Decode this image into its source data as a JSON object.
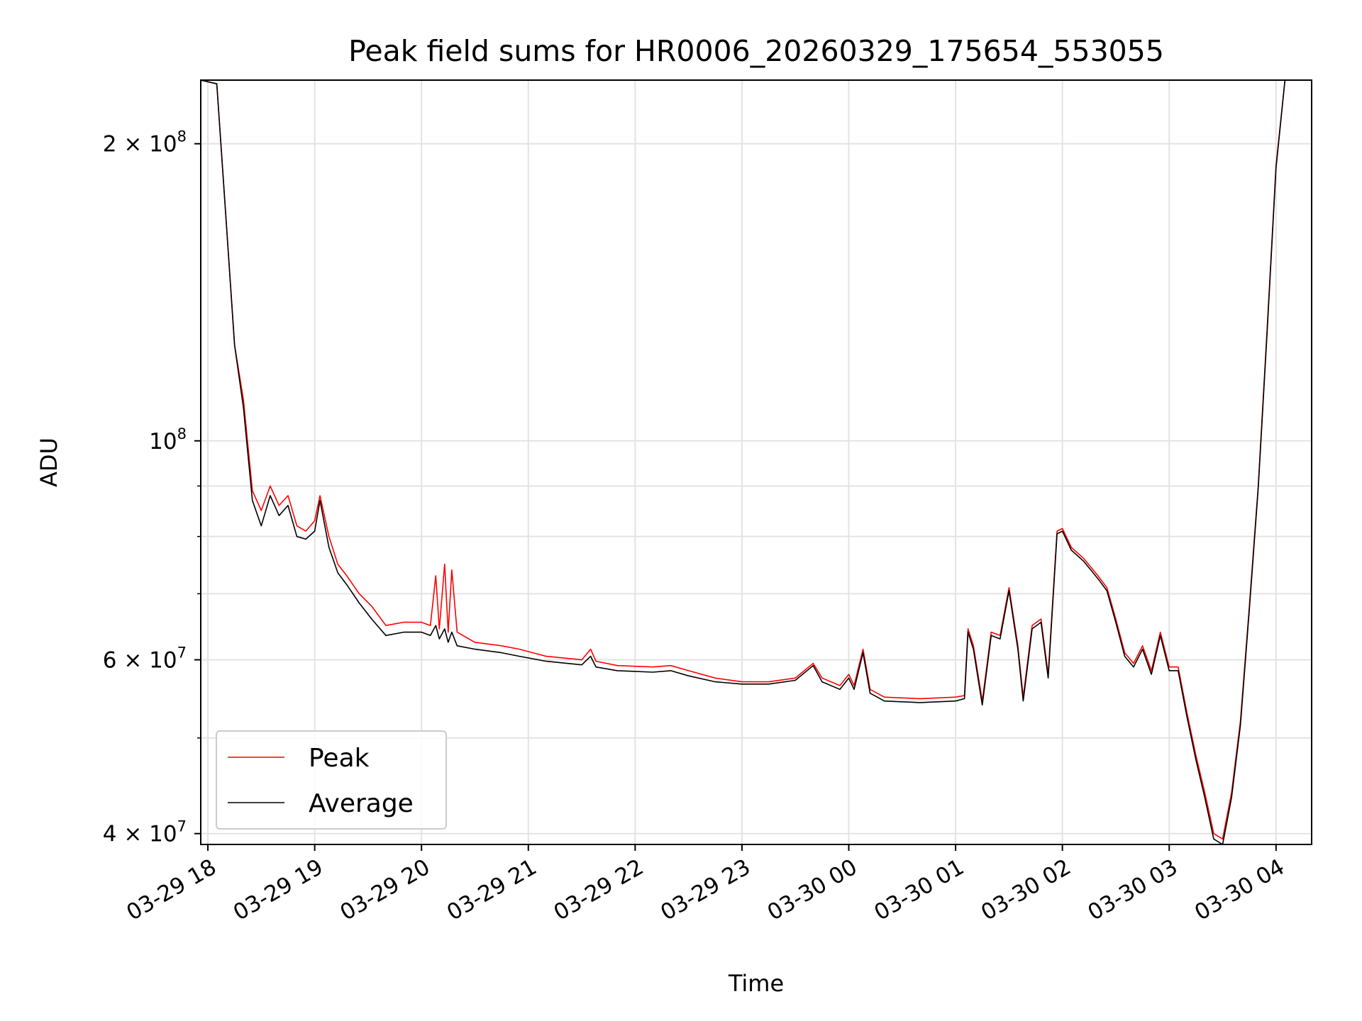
{
  "chart_data": {
    "type": "line",
    "title": "Peak field sums for HR0006_20260329_175654_553055",
    "xlabel": "Time",
    "ylabel": "ADU",
    "y_scale": "log",
    "xlim": [
      "2026-03-29T17:56:00",
      "2026-03-30T04:20:00"
    ],
    "ylim": [
      39000000,
      232000000
    ],
    "grid": true,
    "legend_position": "lower-left",
    "x_tick_labels": [
      "03-29 18",
      "03-29 19",
      "03-29 20",
      "03-29 21",
      "03-29 22",
      "03-29 23",
      "03-30 00",
      "03-30 01",
      "03-30 02",
      "03-30 03",
      "03-30 04"
    ],
    "x_tick_values": [
      "2026-03-29T18:00:00",
      "2026-03-29T19:00:00",
      "2026-03-29T20:00:00",
      "2026-03-29T21:00:00",
      "2026-03-29T22:00:00",
      "2026-03-29T23:00:00",
      "2026-03-30T00:00:00",
      "2026-03-30T01:00:00",
      "2026-03-30T02:00:00",
      "2026-03-30T03:00:00",
      "2026-03-30T04:00:00"
    ],
    "y_major_ticks": [
      {
        "value": 40000000,
        "mantissa": "4",
        "exponent": "7"
      },
      {
        "value": 60000000,
        "mantissa": "6",
        "exponent": "7"
      },
      {
        "value": 100000000,
        "mantissa": "",
        "exponent": "8"
      },
      {
        "value": 200000000,
        "mantissa": "2",
        "exponent": "8"
      }
    ],
    "y_minor_ticks": [
      50000000,
      70000000,
      80000000,
      90000000
    ],
    "series": [
      {
        "name": "Peak",
        "color": "#ff0000",
        "points": [
          [
            "2026-03-29T17:56:00",
            232000000
          ],
          [
            "2026-03-29T18:05:00",
            230000000
          ],
          [
            "2026-03-29T18:10:00",
            170000000
          ],
          [
            "2026-03-29T18:15:00",
            125000000
          ],
          [
            "2026-03-29T18:20:00",
            110000000
          ],
          [
            "2026-03-29T18:25:00",
            89000000
          ],
          [
            "2026-03-29T18:30:00",
            85000000
          ],
          [
            "2026-03-29T18:35:00",
            90000000
          ],
          [
            "2026-03-29T18:40:00",
            86000000
          ],
          [
            "2026-03-29T18:45:00",
            88000000
          ],
          [
            "2026-03-29T18:50:00",
            82000000
          ],
          [
            "2026-03-29T18:55:00",
            81000000
          ],
          [
            "2026-03-29T19:00:00",
            83000000
          ],
          [
            "2026-03-29T19:03:00",
            88000000
          ],
          [
            "2026-03-29T19:08:00",
            80000000
          ],
          [
            "2026-03-29T19:13:00",
            75000000
          ],
          [
            "2026-03-29T19:18:00",
            73000000
          ],
          [
            "2026-03-29T19:25:00",
            70000000
          ],
          [
            "2026-03-29T19:32:00",
            68000000
          ],
          [
            "2026-03-29T19:40:00",
            65000000
          ],
          [
            "2026-03-29T19:50:00",
            65500000
          ],
          [
            "2026-03-29T20:00:00",
            65500000
          ],
          [
            "2026-03-29T20:05:00",
            65000000
          ],
          [
            "2026-03-29T20:08:00",
            73000000
          ],
          [
            "2026-03-29T20:10:00",
            64500000
          ],
          [
            "2026-03-29T20:13:00",
            75000000
          ],
          [
            "2026-03-29T20:15:00",
            64000000
          ],
          [
            "2026-03-29T20:17:00",
            74000000
          ],
          [
            "2026-03-29T20:20:00",
            64000000
          ],
          [
            "2026-03-29T20:30:00",
            62500000
          ],
          [
            "2026-03-29T20:45:00",
            62000000
          ],
          [
            "2026-03-29T20:55:00",
            61500000
          ],
          [
            "2026-03-29T21:10:00",
            60500000
          ],
          [
            "2026-03-29T21:30:00",
            60000000
          ],
          [
            "2026-03-29T21:35:00",
            61500000
          ],
          [
            "2026-03-29T21:38:00",
            59800000
          ],
          [
            "2026-03-29T21:50:00",
            59200000
          ],
          [
            "2026-03-29T22:10:00",
            59000000
          ],
          [
            "2026-03-29T22:20:00",
            59200000
          ],
          [
            "2026-03-29T22:30:00",
            58500000
          ],
          [
            "2026-03-29T22:45:00",
            57500000
          ],
          [
            "2026-03-29T23:00:00",
            57000000
          ],
          [
            "2026-03-29T23:15:00",
            57000000
          ],
          [
            "2026-03-29T23:30:00",
            57500000
          ],
          [
            "2026-03-29T23:40:00",
            59500000
          ],
          [
            "2026-03-29T23:45:00",
            57500000
          ],
          [
            "2026-03-29T23:55:00",
            56500000
          ],
          [
            "2026-03-30T00:00:00",
            58000000
          ],
          [
            "2026-03-30T00:03:00",
            56500000
          ],
          [
            "2026-03-30T00:08:00",
            61500000
          ],
          [
            "2026-03-30T00:12:00",
            56000000
          ],
          [
            "2026-03-30T00:20:00",
            55000000
          ],
          [
            "2026-03-30T00:40:00",
            54800000
          ],
          [
            "2026-03-30T01:00:00",
            55000000
          ],
          [
            "2026-03-30T01:05:00",
            55200000
          ],
          [
            "2026-03-30T01:07:00",
            64500000
          ],
          [
            "2026-03-30T01:10:00",
            62000000
          ],
          [
            "2026-03-30T01:15:00",
            54500000
          ],
          [
            "2026-03-30T01:20:00",
            64000000
          ],
          [
            "2026-03-30T01:25:00",
            63500000
          ],
          [
            "2026-03-30T01:30:00",
            71000000
          ],
          [
            "2026-03-30T01:35:00",
            62000000
          ],
          [
            "2026-03-30T01:38:00",
            55000000
          ],
          [
            "2026-03-30T01:43:00",
            65000000
          ],
          [
            "2026-03-30T01:48:00",
            66000000
          ],
          [
            "2026-03-30T01:52:00",
            58000000
          ],
          [
            "2026-03-30T01:57:00",
            81000000
          ],
          [
            "2026-03-30T02:00:00",
            81500000
          ],
          [
            "2026-03-30T02:05:00",
            78000000
          ],
          [
            "2026-03-30T02:12:00",
            76000000
          ],
          [
            "2026-03-30T02:20:00",
            73000000
          ],
          [
            "2026-03-30T02:25:00",
            71000000
          ],
          [
            "2026-03-30T02:30:00",
            66000000
          ],
          [
            "2026-03-30T02:35:00",
            61000000
          ],
          [
            "2026-03-30T02:40:00",
            59500000
          ],
          [
            "2026-03-30T02:45:00",
            62000000
          ],
          [
            "2026-03-30T02:50:00",
            58500000
          ],
          [
            "2026-03-30T02:55:00",
            64000000
          ],
          [
            "2026-03-30T03:00:00",
            59000000
          ],
          [
            "2026-03-30T03:05:00",
            59000000
          ],
          [
            "2026-03-30T03:10:00",
            53000000
          ],
          [
            "2026-03-30T03:15:00",
            48000000
          ],
          [
            "2026-03-30T03:20:00",
            44000000
          ],
          [
            "2026-03-30T03:25:00",
            40000000
          ],
          [
            "2026-03-30T03:30:00",
            39500000
          ],
          [
            "2026-03-30T03:35:00",
            44000000
          ],
          [
            "2026-03-30T03:40:00",
            52000000
          ],
          [
            "2026-03-30T03:45:00",
            68000000
          ],
          [
            "2026-03-30T03:50:00",
            90000000
          ],
          [
            "2026-03-30T03:55:00",
            130000000
          ],
          [
            "2026-03-30T04:00:00",
            190000000
          ],
          [
            "2026-03-30T04:05:00",
            232000000
          ],
          [
            "2026-03-30T04:20:00",
            232000000
          ]
        ]
      },
      {
        "name": "Average",
        "color": "#000000",
        "points": [
          [
            "2026-03-29T17:56:00",
            232000000
          ],
          [
            "2026-03-29T18:05:00",
            230000000
          ],
          [
            "2026-03-29T18:10:00",
            170000000
          ],
          [
            "2026-03-29T18:15:00",
            125000000
          ],
          [
            "2026-03-29T18:20:00",
            108000000
          ],
          [
            "2026-03-29T18:25:00",
            87000000
          ],
          [
            "2026-03-29T18:30:00",
            82000000
          ],
          [
            "2026-03-29T18:35:00",
            88000000
          ],
          [
            "2026-03-29T18:40:00",
            84000000
          ],
          [
            "2026-03-29T18:45:00",
            86000000
          ],
          [
            "2026-03-29T18:50:00",
            80000000
          ],
          [
            "2026-03-29T18:55:00",
            79500000
          ],
          [
            "2026-03-29T19:00:00",
            81000000
          ],
          [
            "2026-03-29T19:03:00",
            87000000
          ],
          [
            "2026-03-29T19:08:00",
            78000000
          ],
          [
            "2026-03-29T19:13:00",
            73500000
          ],
          [
            "2026-03-29T19:18:00",
            71500000
          ],
          [
            "2026-03-29T19:25:00",
            68500000
          ],
          [
            "2026-03-29T19:32:00",
            66000000
          ],
          [
            "2026-03-29T19:40:00",
            63500000
          ],
          [
            "2026-03-29T19:50:00",
            64000000
          ],
          [
            "2026-03-29T20:00:00",
            64000000
          ],
          [
            "2026-03-29T20:05:00",
            63500000
          ],
          [
            "2026-03-29T20:08:00",
            65000000
          ],
          [
            "2026-03-29T20:10:00",
            63000000
          ],
          [
            "2026-03-29T20:13:00",
            64500000
          ],
          [
            "2026-03-29T20:15:00",
            62500000
          ],
          [
            "2026-03-29T20:17:00",
            64000000
          ],
          [
            "2026-03-29T20:20:00",
            62000000
          ],
          [
            "2026-03-29T20:30:00",
            61500000
          ],
          [
            "2026-03-29T20:45:00",
            61000000
          ],
          [
            "2026-03-29T20:55:00",
            60500000
          ],
          [
            "2026-03-29T21:10:00",
            59800000
          ],
          [
            "2026-03-29T21:30:00",
            59300000
          ],
          [
            "2026-03-29T21:35:00",
            60500000
          ],
          [
            "2026-03-29T21:38:00",
            59000000
          ],
          [
            "2026-03-29T21:50:00",
            58500000
          ],
          [
            "2026-03-29T22:10:00",
            58300000
          ],
          [
            "2026-03-29T22:20:00",
            58500000
          ],
          [
            "2026-03-29T22:30:00",
            57800000
          ],
          [
            "2026-03-29T22:45:00",
            57000000
          ],
          [
            "2026-03-29T23:00:00",
            56700000
          ],
          [
            "2026-03-29T23:15:00",
            56700000
          ],
          [
            "2026-03-29T23:30:00",
            57200000
          ],
          [
            "2026-03-29T23:40:00",
            59200000
          ],
          [
            "2026-03-29T23:45:00",
            57000000
          ],
          [
            "2026-03-29T23:55:00",
            56000000
          ],
          [
            "2026-03-30T00:00:00",
            57500000
          ],
          [
            "2026-03-30T00:03:00",
            56000000
          ],
          [
            "2026-03-30T00:08:00",
            61000000
          ],
          [
            "2026-03-30T00:12:00",
            55500000
          ],
          [
            "2026-03-30T00:20:00",
            54500000
          ],
          [
            "2026-03-30T00:40:00",
            54300000
          ],
          [
            "2026-03-30T01:00:00",
            54500000
          ],
          [
            "2026-03-30T01:05:00",
            54800000
          ],
          [
            "2026-03-30T01:07:00",
            64000000
          ],
          [
            "2026-03-30T01:10:00",
            61500000
          ],
          [
            "2026-03-30T01:15:00",
            54000000
          ],
          [
            "2026-03-30T01:20:00",
            63500000
          ],
          [
            "2026-03-30T01:25:00",
            63000000
          ],
          [
            "2026-03-30T01:30:00",
            70500000
          ],
          [
            "2026-03-30T01:35:00",
            61500000
          ],
          [
            "2026-03-30T01:38:00",
            54500000
          ],
          [
            "2026-03-30T01:43:00",
            64500000
          ],
          [
            "2026-03-30T01:48:00",
            65500000
          ],
          [
            "2026-03-30T01:52:00",
            57500000
          ],
          [
            "2026-03-30T01:57:00",
            80500000
          ],
          [
            "2026-03-30T02:00:00",
            81000000
          ],
          [
            "2026-03-30T02:05:00",
            77500000
          ],
          [
            "2026-03-30T02:12:00",
            75500000
          ],
          [
            "2026-03-30T02:20:00",
            72500000
          ],
          [
            "2026-03-30T02:25:00",
            70500000
          ],
          [
            "2026-03-30T02:30:00",
            65500000
          ],
          [
            "2026-03-30T02:35:00",
            60500000
          ],
          [
            "2026-03-30T02:40:00",
            59000000
          ],
          [
            "2026-03-30T02:45:00",
            61500000
          ],
          [
            "2026-03-30T02:50:00",
            58000000
          ],
          [
            "2026-03-30T02:55:00",
            63500000
          ],
          [
            "2026-03-30T03:00:00",
            58500000
          ],
          [
            "2026-03-30T03:05:00",
            58500000
          ],
          [
            "2026-03-30T03:10:00",
            52500000
          ],
          [
            "2026-03-30T03:15:00",
            47500000
          ],
          [
            "2026-03-30T03:20:00",
            43500000
          ],
          [
            "2026-03-30T03:25:00",
            39500000
          ],
          [
            "2026-03-30T03:30:00",
            39000000
          ],
          [
            "2026-03-30T03:35:00",
            43500000
          ],
          [
            "2026-03-30T03:40:00",
            51500000
          ],
          [
            "2026-03-30T03:45:00",
            67500000
          ],
          [
            "2026-03-30T03:50:00",
            89500000
          ],
          [
            "2026-03-30T03:55:00",
            129000000
          ],
          [
            "2026-03-30T04:00:00",
            189000000
          ],
          [
            "2026-03-30T04:05:00",
            232000000
          ],
          [
            "2026-03-30T04:20:00",
            232000000
          ]
        ]
      }
    ]
  }
}
